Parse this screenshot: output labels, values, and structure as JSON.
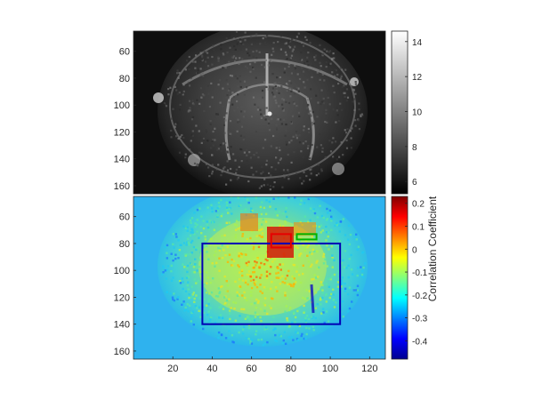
{
  "chart_data": [
    {
      "type": "heatmap",
      "colormap": "gray",
      "xlim": [
        0,
        128
      ],
      "ylim": [
        45,
        166
      ],
      "yticks": [
        60,
        80,
        100,
        120,
        140,
        160
      ],
      "xticks": [],
      "title": "",
      "xlabel": "",
      "ylabel": "",
      "colorbar": {
        "limits": [
          5.3,
          14.6
        ],
        "ticks": [
          6,
          8,
          10,
          12,
          14
        ],
        "label": ""
      }
    },
    {
      "type": "heatmap",
      "colormap": "jet",
      "xlim": [
        0,
        128
      ],
      "ylim": [
        45,
        166
      ],
      "yticks": [
        60,
        80,
        100,
        120,
        140,
        160
      ],
      "xticks": [
        20,
        40,
        60,
        80,
        100,
        120
      ],
      "title": "",
      "xlabel": "",
      "ylabel": "",
      "colorbar": {
        "limits": [
          -0.48,
          0.23
        ],
        "ticks": [
          0.2,
          0.1,
          0,
          -0.1,
          -0.2,
          -0.3,
          -0.4
        ],
        "label": "Correlation Coefficient"
      },
      "annotations": [
        {
          "type": "rect",
          "color": "#0000b4",
          "x": [
            35,
            105
          ],
          "y": [
            80,
            140
          ]
        },
        {
          "type": "rect",
          "color": "#e60000",
          "x": [
            70,
            80
          ],
          "y": [
            73,
            83
          ]
        },
        {
          "type": "rect",
          "color": "#00b400",
          "x": [
            83,
            93
          ],
          "y": [
            73,
            77
          ]
        }
      ]
    }
  ]
}
